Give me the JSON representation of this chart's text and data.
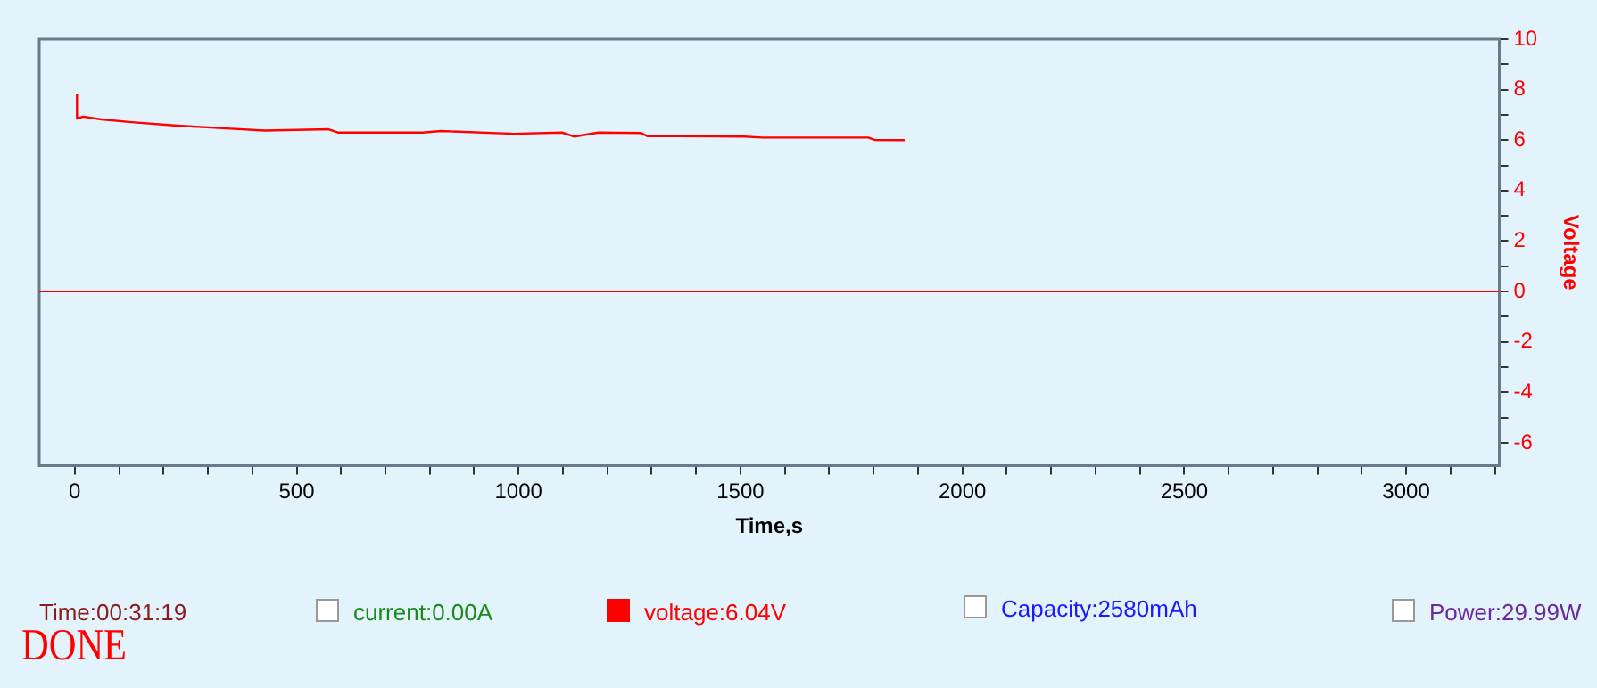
{
  "chart_data": {
    "type": "line",
    "xlabel": "Time,s",
    "ylabel": "Voltage",
    "x": [
      5,
      5,
      19,
      60,
      128,
      224,
      333,
      429,
      572,
      593,
      784,
      825,
      989,
      1098,
      1126,
      1180,
      1276,
      1290,
      1508,
      1549,
      1788,
      1802,
      1870
    ],
    "series": [
      {
        "color": "#ff0000",
        "values": [
          7.8,
          6.85,
          6.93,
          6.82,
          6.71,
          6.58,
          6.47,
          6.38,
          6.43,
          6.3,
          6.3,
          6.36,
          6.25,
          6.3,
          6.14,
          6.3,
          6.28,
          6.16,
          6.14,
          6.1,
          6.1,
          6.01,
          6.0
        ]
      }
    ],
    "xlim": [
      -80,
      3210
    ],
    "xticks": [
      0,
      {
        "value": 100,
        "label": null
      },
      {
        "value": 200,
        "label": null
      },
      {
        "value": 300,
        "label": null
      },
      {
        "value": 400,
        "label": null
      },
      500,
      {
        "value": 600,
        "label": null
      },
      {
        "value": 700,
        "label": null
      },
      {
        "value": 800,
        "label": null
      },
      {
        "value": 900,
        "label": null
      },
      1000,
      {
        "value": 1100,
        "label": null
      },
      {
        "value": 1200,
        "label": null
      },
      {
        "value": 1300,
        "label": null
      },
      {
        "value": 1400,
        "label": null
      },
      1500,
      {
        "value": 1600,
        "label": null
      },
      {
        "value": 1700,
        "label": null
      },
      {
        "value": 1800,
        "label": null
      },
      {
        "value": 1900,
        "label": null
      },
      2000,
      {
        "value": 2100,
        "label": null
      },
      {
        "value": 2200,
        "label": null
      },
      {
        "value": 2300,
        "label": null
      },
      {
        "value": 2400,
        "label": null
      },
      2500,
      {
        "value": 2600,
        "label": null
      },
      {
        "value": 2700,
        "label": null
      },
      {
        "value": 2800,
        "label": null
      },
      {
        "value": 2900,
        "label": null
      },
      3000,
      {
        "value": 3100,
        "label": null
      },
      {
        "value": 3200,
        "label": null
      }
    ],
    "ylim": [
      -6.9,
      10
    ],
    "yticks": [
      -6,
      {
        "value": -5,
        "label": null
      },
      -4,
      {
        "value": -3,
        "label": null
      },
      -2,
      {
        "value": -1,
        "label": null
      },
      0,
      {
        "value": 1,
        "label": null
      },
      2,
      {
        "value": 3,
        "label": null
      },
      4,
      {
        "value": 5,
        "label": null
      },
      6,
      {
        "value": 7,
        "label": null
      },
      8,
      {
        "value": 9,
        "label": null
      },
      10
    ],
    "ref_lines": [
      {
        "axis": "y",
        "value": 0,
        "color": "#ff0000"
      }
    ],
    "grid": false,
    "legend": false,
    "marker": "none",
    "line_style": "solid",
    "annotations": [
      "Time:00:31:19",
      "current:0.00A",
      "voltage:6.04V",
      "Capacity:2580mAh",
      "Power:29.99W",
      "DONE"
    ]
  }
}
